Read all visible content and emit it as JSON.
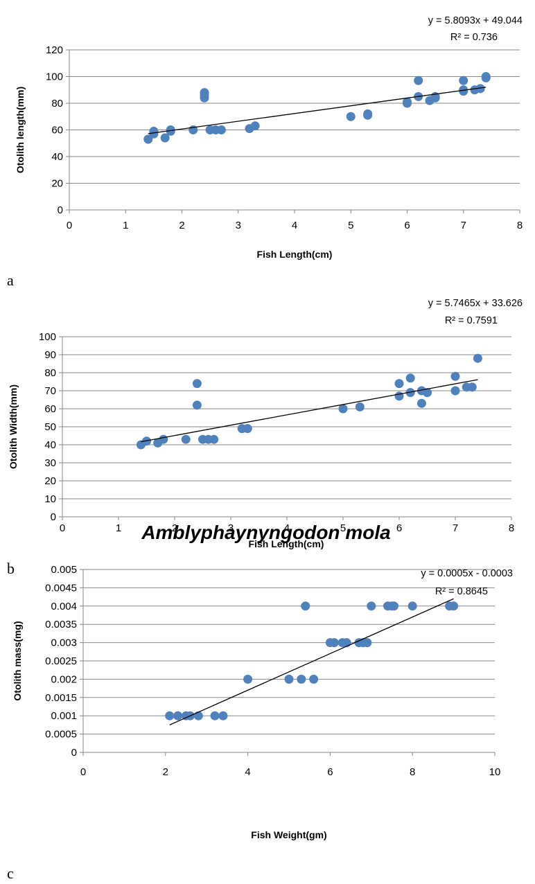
{
  "chart_data": [
    {
      "type": "scatter",
      "panel_label": "a",
      "title": "",
      "xlabel": "Fish Length(cm)",
      "ylabel": "Otolith length(mm)",
      "xlim": [
        0,
        8
      ],
      "ylim": [
        0,
        120
      ],
      "xticks": [
        0,
        1,
        2,
        3,
        4,
        5,
        6,
        7,
        8
      ],
      "yticks": [
        0,
        20,
        40,
        60,
        80,
        100,
        120
      ],
      "grid": "horizontal",
      "point_color": "#4f81bd",
      "trendline": {
        "slope": 5.8093,
        "intercept": 49.044,
        "x_range": [
          1.4,
          7.4
        ]
      },
      "equation": "y = 5.8093x + 49.044",
      "r2": "R² = 0.736",
      "points": [
        [
          1.4,
          53
        ],
        [
          1.5,
          57
        ],
        [
          1.5,
          59
        ],
        [
          1.7,
          54
        ],
        [
          1.8,
          59
        ],
        [
          1.8,
          60
        ],
        [
          2.2,
          60
        ],
        [
          2.4,
          84
        ],
        [
          2.4,
          86
        ],
        [
          2.4,
          88
        ],
        [
          2.5,
          60
        ],
        [
          2.6,
          60
        ],
        [
          2.7,
          60
        ],
        [
          3.2,
          61
        ],
        [
          3.3,
          63
        ],
        [
          5.0,
          70
        ],
        [
          5.3,
          71
        ],
        [
          5.3,
          72
        ],
        [
          6.0,
          80
        ],
        [
          6.0,
          81
        ],
        [
          6.2,
          85
        ],
        [
          6.2,
          97
        ],
        [
          6.4,
          82
        ],
        [
          6.5,
          84
        ],
        [
          6.5,
          85
        ],
        [
          7.0,
          89
        ],
        [
          7.0,
          90
        ],
        [
          7.0,
          97
        ],
        [
          7.2,
          90
        ],
        [
          7.3,
          91
        ],
        [
          7.4,
          99
        ],
        [
          7.4,
          100
        ]
      ]
    },
    {
      "type": "scatter",
      "panel_label": "b",
      "title": "",
      "xlabel": "Fish Length(cm)",
      "ylabel": "Otolith Width(mm)",
      "xlim": [
        0,
        8
      ],
      "ylim": [
        0,
        100
      ],
      "xticks": [
        0,
        1,
        2,
        3,
        4,
        5,
        6,
        7,
        8
      ],
      "yticks": [
        0,
        10,
        20,
        30,
        40,
        50,
        60,
        70,
        80,
        90,
        100
      ],
      "grid": "horizontal",
      "point_color": "#4f81bd",
      "trendline": {
        "slope": 5.7465,
        "intercept": 33.626,
        "x_range": [
          1.4,
          7.4
        ]
      },
      "equation": "y = 5.7465x + 33.626",
      "r2": "R² = 0.7591",
      "points": [
        [
          1.4,
          40
        ],
        [
          1.5,
          42
        ],
        [
          1.7,
          41
        ],
        [
          1.8,
          43
        ],
        [
          2.2,
          43
        ],
        [
          2.4,
          62
        ],
        [
          2.4,
          74
        ],
        [
          2.5,
          43
        ],
        [
          2.6,
          43
        ],
        [
          2.7,
          43
        ],
        [
          3.2,
          49
        ],
        [
          3.3,
          49
        ],
        [
          5.0,
          60
        ],
        [
          5.3,
          61
        ],
        [
          6.0,
          67
        ],
        [
          6.0,
          74
        ],
        [
          6.2,
          69
        ],
        [
          6.2,
          77
        ],
        [
          6.4,
          63
        ],
        [
          6.4,
          70
        ],
        [
          6.5,
          69
        ],
        [
          7.0,
          70
        ],
        [
          7.0,
          78
        ],
        [
          7.2,
          72
        ],
        [
          7.3,
          72
        ],
        [
          7.4,
          88
        ]
      ]
    },
    {
      "type": "scatter",
      "panel_label": "c",
      "title": "Amblyphaynyngodon mola",
      "xlabel": "Fish Weight(gm)",
      "ylabel": "Otolith mass(mg)",
      "xlim": [
        0,
        10
      ],
      "ylim": [
        0,
        0.005
      ],
      "xticks": [
        0,
        2,
        4,
        6,
        8,
        10
      ],
      "yticks": [
        0,
        0.0005,
        0.001,
        0.0015,
        0.002,
        0.0025,
        0.003,
        0.0035,
        0.004,
        0.0045,
        0.005
      ],
      "grid": "horizontal",
      "point_color": "#4f81bd",
      "trendline": {
        "slope": 0.0005,
        "intercept": -0.0003,
        "x_range": [
          2.1,
          9.0
        ]
      },
      "equation": "y = 0.0005x - 0.0003",
      "r2": "R² = 0.8645",
      "points": [
        [
          2.1,
          0.001
        ],
        [
          2.3,
          0.001
        ],
        [
          2.5,
          0.001
        ],
        [
          2.6,
          0.001
        ],
        [
          2.8,
          0.001
        ],
        [
          3.2,
          0.001
        ],
        [
          3.4,
          0.001
        ],
        [
          4.0,
          0.002
        ],
        [
          5.0,
          0.002
        ],
        [
          5.3,
          0.002
        ],
        [
          5.4,
          0.004
        ],
        [
          5.6,
          0.002
        ],
        [
          6.0,
          0.003
        ],
        [
          6.1,
          0.003
        ],
        [
          6.3,
          0.003
        ],
        [
          6.4,
          0.003
        ],
        [
          6.7,
          0.003
        ],
        [
          6.8,
          0.003
        ],
        [
          6.9,
          0.003
        ],
        [
          7.0,
          0.004
        ],
        [
          7.4,
          0.004
        ],
        [
          7.5,
          0.004
        ],
        [
          7.55,
          0.004
        ],
        [
          8.0,
          0.004
        ],
        [
          8.9,
          0.004
        ],
        [
          9.0,
          0.004
        ]
      ]
    }
  ]
}
